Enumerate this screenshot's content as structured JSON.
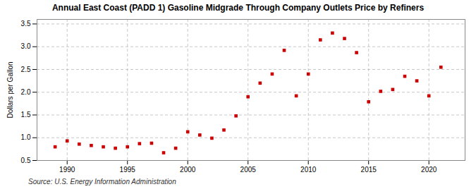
{
  "chart_data": {
    "type": "scatter",
    "title": "Annual East Coast (PADD 1) Gasoline Midgrade Through Company Outlets Price by Refiners",
    "ylabel": "Dollars per Gallon",
    "source": "Source: U.S. Energy Information Administration",
    "x": [
      1989,
      1990,
      1991,
      1992,
      1993,
      1994,
      1995,
      1996,
      1997,
      1998,
      1999,
      2000,
      2001,
      2002,
      2003,
      2004,
      2005,
      2006,
      2007,
      2008,
      2009,
      2010,
      2011,
      2012,
      2013,
      2014,
      2015,
      2016,
      2017,
      2018,
      2019,
      2020,
      2021
    ],
    "values": [
      0.8,
      0.93,
      0.86,
      0.83,
      0.8,
      0.77,
      0.8,
      0.87,
      0.88,
      0.67,
      0.77,
      1.13,
      1.06,
      0.99,
      1.17,
      1.48,
      1.9,
      2.2,
      2.4,
      2.92,
      1.92,
      2.4,
      3.15,
      3.3,
      3.18,
      2.87,
      1.79,
      2.02,
      2.06,
      2.35,
      2.25,
      1.92,
      2.55
    ],
    "color": "#cc0000",
    "marker": "square",
    "xlim": [
      1987.5,
      2023
    ],
    "ylim": [
      0.5,
      3.6
    ],
    "xticks": [
      1990,
      1995,
      2000,
      2005,
      2010,
      2015,
      2020
    ],
    "yticks": [
      0.5,
      {
        "value": 1.0,
        "label": "1.0"
      },
      1.5,
      {
        "value": 2.0,
        "label": "2.0"
      },
      2.5,
      {
        "value": 3.0,
        "label": "3.0"
      },
      3.5
    ],
    "grid": true
  }
}
